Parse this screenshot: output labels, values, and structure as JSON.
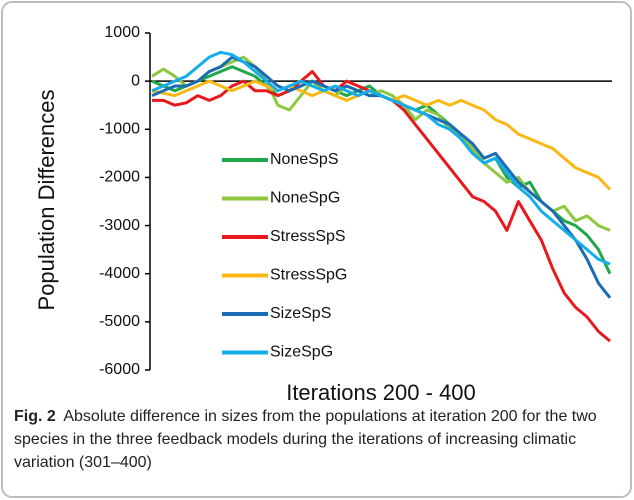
{
  "chart_data": {
    "type": "line",
    "ylabel": "Population Differences",
    "xlabel": "Iterations 200 - 400",
    "ylim": [
      -6000,
      1000
    ],
    "yticks": [
      1000,
      0,
      -1000,
      -2000,
      -3000,
      -4000,
      -5000,
      -6000
    ],
    "series": [
      {
        "name": "NoneSpS",
        "color": "#1fa84a",
        "values": [
          0,
          -100,
          -200,
          -100,
          0,
          100,
          200,
          300,
          200,
          100,
          -100,
          -300,
          -200,
          -100,
          0,
          -100,
          -200,
          -300,
          -200,
          -100,
          -300,
          -400,
          -500,
          -600,
          -500,
          -700,
          -900,
          -1200,
          -1500,
          -1700,
          -1600,
          -2000,
          -2200,
          -2100,
          -2500,
          -2700,
          -2900,
          -3000,
          -3200,
          -3500,
          -4000
        ]
      },
      {
        "name": "NoneSpG",
        "color": "#8dc63f",
        "values": [
          100,
          250,
          100,
          -100,
          0,
          200,
          300,
          400,
          500,
          300,
          0,
          -500,
          -600,
          -300,
          0,
          -200,
          -300,
          -100,
          -200,
          -300,
          -200,
          -300,
          -500,
          -800,
          -600,
          -700,
          -1000,
          -1100,
          -1400,
          -1700,
          -1900,
          -2100,
          -2000,
          -2300,
          -2500,
          -2700,
          -2600,
          -2900,
          -2800,
          -3000,
          -3100
        ]
      },
      {
        "name": "StressSpS",
        "color": "#e8191c",
        "values": [
          -400,
          -400,
          -500,
          -450,
          -300,
          -400,
          -300,
          -100,
          0,
          -200,
          -200,
          -300,
          -200,
          0,
          200,
          -100,
          -200,
          0,
          -100,
          -200,
          -300,
          -400,
          -600,
          -900,
          -1200,
          -1500,
          -1800,
          -2100,
          -2400,
          -2500,
          -2700,
          -3100,
          -2500,
          -2900,
          -3300,
          -3900,
          -4400,
          -4700,
          -4900,
          -5200,
          -5400
        ]
      },
      {
        "name": "StressSpG",
        "color": "#fbb714",
        "values": [
          -200,
          -250,
          -300,
          -200,
          -100,
          0,
          -100,
          -200,
          -100,
          0,
          -100,
          -200,
          -100,
          -200,
          -300,
          -200,
          -300,
          -400,
          -300,
          -200,
          -300,
          -400,
          -300,
          -400,
          -500,
          -400,
          -500,
          -400,
          -500,
          -600,
          -800,
          -900,
          -1100,
          -1200,
          -1300,
          -1400,
          -1600,
          -1800,
          -1900,
          -2000,
          -2250
        ]
      },
      {
        "name": "SizeSpS",
        "color": "#1b6cb5",
        "values": [
          -300,
          -200,
          -100,
          -100,
          0,
          200,
          300,
          500,
          400,
          300,
          100,
          -100,
          -200,
          -100,
          0,
          -100,
          -200,
          -100,
          -200,
          -300,
          -300,
          -400,
          -500,
          -600,
          -700,
          -800,
          -900,
          -1100,
          -1300,
          -1600,
          -1500,
          -1800,
          -2100,
          -2300,
          -2500,
          -2700,
          -3000,
          -3300,
          -3700,
          -4200,
          -4500
        ]
      },
      {
        "name": "SizeSpG",
        "color": "#16aeea",
        "values": [
          -200,
          -100,
          0,
          100,
          300,
          500,
          600,
          550,
          400,
          200,
          0,
          -200,
          -100,
          0,
          -100,
          -200,
          -100,
          -200,
          -300,
          -200,
          -300,
          -400,
          -500,
          -600,
          -700,
          -900,
          -1000,
          -1200,
          -1500,
          -1700,
          -1600,
          -1900,
          -2200,
          -2400,
          -2700,
          -2900,
          -3100,
          -3300,
          -3500,
          -3700,
          -3800
        ]
      }
    ]
  },
  "caption_label": "Fig. 2",
  "caption": "Absolute difference in sizes from the populations at iteration 200 for the two species in the three feedback models during the iterations of increasing climatic variation (301–400)"
}
